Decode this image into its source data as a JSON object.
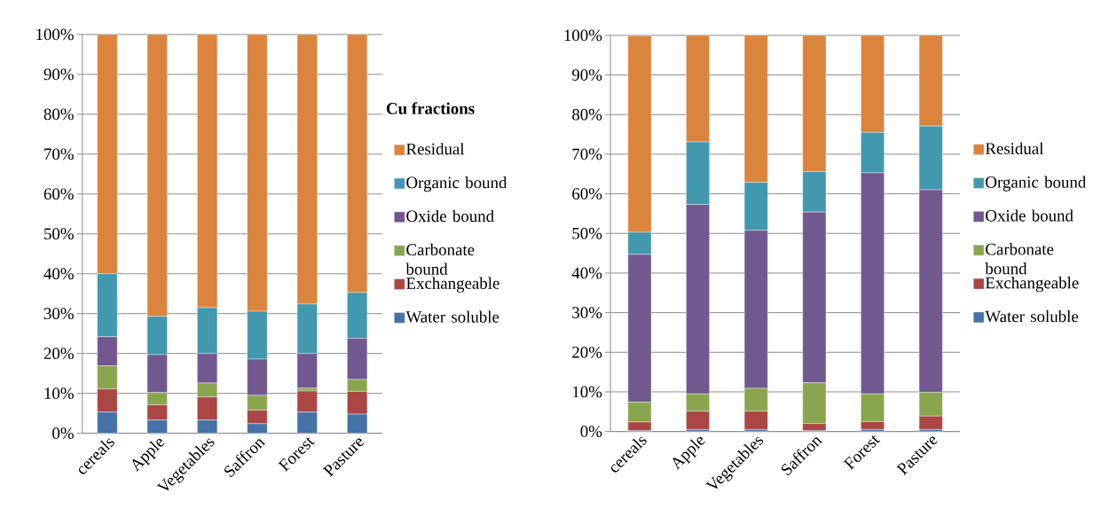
{
  "chart_data": [
    {
      "type": "bar",
      "title": "Cu fractions",
      "stacked": true,
      "grid": "y",
      "legend": "right",
      "categories": [
        "cereals",
        "Apple",
        "Vegetables",
        "Saffron",
        "Forest",
        "Pasture"
      ],
      "ylim": [
        0,
        100
      ],
      "yticks": [
        {
          "value": 0,
          "label": "0%"
        },
        {
          "value": 10,
          "label": "10%"
        },
        {
          "value": 20,
          "label": "20%"
        },
        {
          "value": 30,
          "label": "30%"
        },
        {
          "value": 40,
          "label": "40%"
        },
        {
          "value": 50,
          "label": "50%"
        },
        {
          "value": 60,
          "label": "60%"
        },
        {
          "value": 70,
          "label": "70%"
        },
        {
          "value": 80,
          "label": "80%"
        },
        {
          "value": 90,
          "label": "90%"
        },
        {
          "value": 100,
          "label": "100%"
        }
      ],
      "series": [
        {
          "name": "Water soluble",
          "color": "#4572a7",
          "values": [
            5.3,
            3.3,
            3.3,
            2.4,
            5.3,
            4.8
          ]
        },
        {
          "name": "Exchangeable",
          "color": "#aa4643",
          "values": [
            5.8,
            3.8,
            5.8,
            3.4,
            5.3,
            5.7
          ]
        },
        {
          "name": "Carbonate bound",
          "color": "#89a54e",
          "values": [
            5.8,
            3.1,
            3.5,
            3.7,
            0.7,
            3.0
          ]
        },
        {
          "name": "Oxide bound",
          "color": "#71588f",
          "values": [
            7.3,
            9.5,
            7.4,
            9.1,
            8.7,
            10.3
          ]
        },
        {
          "name": "Organic bound",
          "color": "#4198af",
          "values": [
            15.8,
            9.6,
            11.5,
            12.0,
            12.4,
            11.5
          ]
        },
        {
          "name": "Residual",
          "color": "#db843d",
          "values": [
            60.0,
            70.7,
            68.5,
            69.4,
            67.6,
            64.7
          ]
        }
      ]
    },
    {
      "type": "bar",
      "stacked": true,
      "grid": "y",
      "legend": "right",
      "categories": [
        "cereals",
        "Apple",
        "Vegetables",
        "Saffron",
        "Forest",
        "Pasture"
      ],
      "ylim": [
        0,
        100
      ],
      "yticks": [
        {
          "value": 0,
          "label": "0%"
        },
        {
          "value": 10,
          "label": "10%"
        },
        {
          "value": 20,
          "label": "20%"
        },
        {
          "value": 30,
          "label": "30%"
        },
        {
          "value": 40,
          "label": "40%"
        },
        {
          "value": 50,
          "label": "50%"
        },
        {
          "value": 60,
          "label": "60%"
        },
        {
          "value": 70,
          "label": "70%"
        },
        {
          "value": 80,
          "label": "80%"
        },
        {
          "value": 90,
          "label": "90%"
        },
        {
          "value": 100,
          "label": "100%"
        }
      ],
      "series": [
        {
          "name": "Water soluble",
          "color": "#4572a7",
          "values": [
            0.2,
            0.5,
            0.5,
            0.2,
            0.5,
            0.5
          ]
        },
        {
          "name": "Exchangeable",
          "color": "#aa4643",
          "values": [
            2.2,
            4.6,
            4.6,
            1.8,
            2.0,
            3.4
          ]
        },
        {
          "name": "Carbonate bound",
          "color": "#89a54e",
          "values": [
            5.0,
            4.4,
            5.8,
            10.3,
            7.0,
            6.0
          ]
        },
        {
          "name": "Oxide bound",
          "color": "#71588f",
          "values": [
            37.3,
            47.8,
            39.9,
            43.1,
            55.8,
            51.1
          ]
        },
        {
          "name": "Organic bound",
          "color": "#4198af",
          "values": [
            5.6,
            15.8,
            12.1,
            10.2,
            10.2,
            16.1
          ]
        },
        {
          "name": "Residual",
          "color": "#db843d",
          "values": [
            49.6,
            26.9,
            37.1,
            34.4,
            24.5,
            22.9
          ]
        }
      ]
    }
  ]
}
